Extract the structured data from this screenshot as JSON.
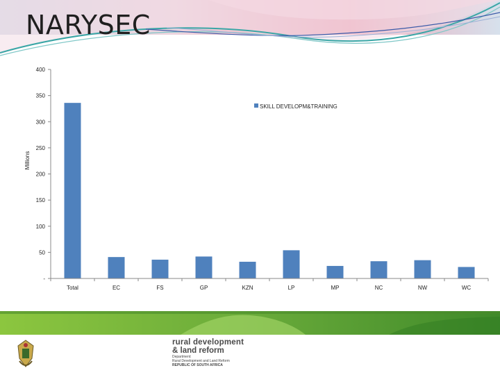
{
  "slide": {
    "title": "NARYSEC"
  },
  "brand": {
    "name_line1": "rural development",
    "name_line2": "& land reform",
    "sub_line1": "Department:",
    "sub_line2": "Rural Development and Land Reform",
    "sub_line3": "REPUBLIC OF SOUTH AFRICA"
  },
  "colors": {
    "bar": "#4f81bd",
    "header_teal": "#3aa6a6",
    "header_pink": "#d9708a",
    "footer_green": "#6aab3a",
    "axis": "#888888"
  },
  "chart_data": {
    "type": "bar",
    "ylabel": "Millions",
    "xlabel": "",
    "ylim": [
      0,
      400
    ],
    "yticks": [
      0,
      50,
      100,
      150,
      200,
      250,
      300,
      350,
      400
    ],
    "ytick_labels": [
      "-",
      "50",
      "100",
      "150",
      "200",
      "250",
      "300",
      "350",
      "400"
    ],
    "legend_position": "top-right",
    "categories": [
      "Total",
      "EC",
      "FS",
      "GP",
      "KZN",
      "LP",
      "MP",
      "NC",
      "NW",
      "WC"
    ],
    "series": [
      {
        "name": "SKILL DEVELOPM&TRAINING",
        "values": [
          336,
          41,
          36,
          42,
          32,
          54,
          24,
          33,
          35,
          22
        ]
      }
    ]
  }
}
